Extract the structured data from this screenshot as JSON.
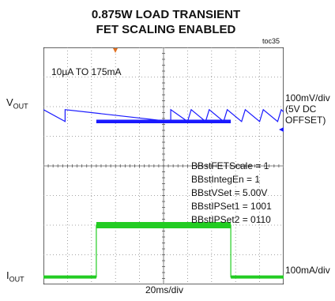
{
  "chart": {
    "title_line1": "0.875W LOAD TRANSIENT",
    "title_line2": "FET SCALING ENABLED",
    "figure_id": "toc35",
    "annotation": "10µA TO 175mA",
    "register_lines": [
      "BBstFETScale = 1",
      "BBstIntegEn = 1",
      "BBstVSet = 5.00V",
      "BBstIPSet1 = 1001",
      "BBstIPSet2 = 0110"
    ],
    "vout_label": "V",
    "vout_sub": "OUT",
    "iout_label": "I",
    "iout_sub": "OUT",
    "vout_scale_line1": "100mV/div",
    "vout_scale_line2": "(5V DC",
    "vout_scale_line3": "OFFSET)",
    "iout_scale": "100mA/div",
    "time_scale": "20ms/div"
  },
  "chart_data": {
    "type": "line",
    "grid": true,
    "x_divisions": 10,
    "y_divisions": 8,
    "series": [
      {
        "name": "VOUT",
        "color": "#1a1aff",
        "time_ms": [
          0,
          18,
          18,
          106,
          106,
          120,
          123,
          135,
          138,
          150,
          153,
          165,
          168,
          180,
          183,
          195,
          198,
          200
        ],
        "value_mV": [
          40,
          0,
          40,
          0,
          40,
          0,
          40,
          0,
          40,
          0,
          40,
          0,
          40,
          0,
          40,
          0,
          40,
          32
        ]
      },
      {
        "name": "IOUT",
        "color": "#22cc22",
        "time_ms": [
          0,
          44,
          44,
          156,
          156,
          200
        ],
        "value_mA": [
          0.01,
          0.01,
          175,
          175,
          0.01,
          0.01
        ]
      }
    ]
  }
}
